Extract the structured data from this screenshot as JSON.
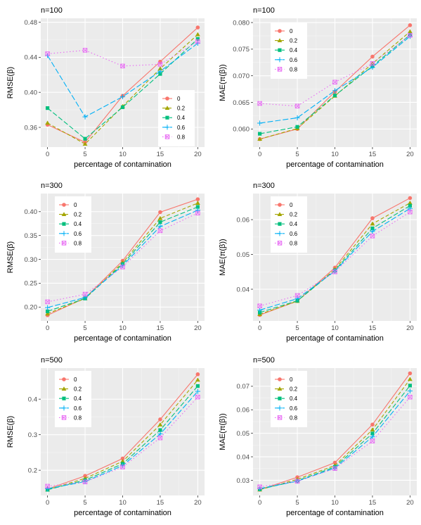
{
  "colors": {
    "panel_bg": "#EBEBEB",
    "grid_major": "#FFFFFF",
    "axis_text": "#4D4D4D",
    "legend_bg": "#FFFFFF",
    "series": [
      "#F8766D",
      "#A3A500",
      "#00BF7D",
      "#00B0F6",
      "#E76BF3"
    ]
  },
  "chart_data": [
    {
      "type": "line",
      "title": "n=100",
      "xlabel": "percentage of contamination",
      "ylabel": "RMSE(β)",
      "x": [
        0,
        5,
        10,
        15,
        20
      ],
      "xlim": [
        -0.9,
        20.9
      ],
      "ylim": [
        0.3375,
        0.4845
      ],
      "yticks": [
        0.36,
        0.4,
        0.44,
        0.48
      ],
      "ytick_labels": [
        "0.36",
        "0.40",
        "0.44",
        "0.48"
      ],
      "legend_position": "right-middle",
      "series": [
        {
          "name": "0",
          "values": [
            0.363,
            0.343,
            0.396,
            0.435,
            0.474
          ]
        },
        {
          "name": "0.2",
          "values": [
            0.365,
            0.341,
            0.384,
            0.427,
            0.466
          ]
        },
        {
          "name": "0.4",
          "values": [
            0.382,
            0.347,
            0.383,
            0.421,
            0.461
          ]
        },
        {
          "name": "0.6",
          "values": [
            0.442,
            0.372,
            0.395,
            0.424,
            0.456
          ]
        },
        {
          "name": "0.8",
          "values": [
            0.444,
            0.448,
            0.43,
            0.432,
            0.458
          ]
        }
      ]
    },
    {
      "type": "line",
      "title": "n=100",
      "xlabel": "percentage of contamination",
      "ylabel": "MAE(π(β))",
      "x": [
        0,
        5,
        10,
        15,
        20
      ],
      "xlim": [
        -0.9,
        20.9
      ],
      "ylim": [
        0.0566,
        0.0808
      ],
      "yticks": [
        0.06,
        0.065,
        0.07,
        0.075,
        0.08
      ],
      "ytick_labels": [
        "0.060",
        "0.065",
        "0.070",
        "0.075",
        "0.080"
      ],
      "legend_position": "top-left",
      "series": [
        {
          "name": "0",
          "values": [
            0.0581,
            0.06,
            0.067,
            0.0736,
            0.0795
          ]
        },
        {
          "name": "0.2",
          "values": [
            0.0581,
            0.0601,
            0.0662,
            0.0723,
            0.0783
          ]
        },
        {
          "name": "0.4",
          "values": [
            0.0591,
            0.0604,
            0.0663,
            0.0718,
            0.0777
          ]
        },
        {
          "name": "0.6",
          "values": [
            0.0611,
            0.0621,
            0.0672,
            0.0716,
            0.0774
          ]
        },
        {
          "name": "0.8",
          "values": [
            0.0648,
            0.0643,
            0.0688,
            0.0723,
            0.0776
          ]
        }
      ]
    },
    {
      "type": "line",
      "title": "n=300",
      "xlabel": "percentage of contamination",
      "ylabel": "RMSE(β)",
      "x": [
        0,
        5,
        10,
        15,
        20
      ],
      "xlim": [
        -0.9,
        20.9
      ],
      "ylim": [
        0.171,
        0.438
      ],
      "yticks": [
        0.2,
        0.25,
        0.3,
        0.35,
        0.4
      ],
      "ytick_labels": [
        "0.20",
        "0.25",
        "0.30",
        "0.35",
        "0.40"
      ],
      "legend_position": "top-left",
      "series": [
        {
          "name": "0",
          "values": [
            0.183,
            0.219,
            0.297,
            0.399,
            0.426
          ]
        },
        {
          "name": "0.2",
          "values": [
            0.186,
            0.218,
            0.293,
            0.386,
            0.418
          ]
        },
        {
          "name": "0.4",
          "values": [
            0.191,
            0.218,
            0.29,
            0.378,
            0.41
          ]
        },
        {
          "name": "0.6",
          "values": [
            0.199,
            0.22,
            0.287,
            0.369,
            0.403
          ]
        },
        {
          "name": "0.8",
          "values": [
            0.211,
            0.227,
            0.284,
            0.36,
            0.397
          ]
        }
      ]
    },
    {
      "type": "line",
      "title": "n=300",
      "xlabel": "percentage of contamination",
      "ylabel": "MAE(π(β))",
      "x": [
        0,
        5,
        10,
        15,
        20
      ],
      "xlim": [
        -0.9,
        20.9
      ],
      "ylim": [
        0.0309,
        0.0675
      ],
      "yticks": [
        0.04,
        0.05,
        0.06
      ],
      "ytick_labels": [
        "0.04",
        "0.05",
        "0.06"
      ],
      "legend_position": "top-left",
      "series": [
        {
          "name": "0",
          "values": [
            0.0326,
            0.0366,
            0.0462,
            0.0604,
            0.0662
          ]
        },
        {
          "name": "0.2",
          "values": [
            0.0328,
            0.0366,
            0.0457,
            0.0588,
            0.0648
          ]
        },
        {
          "name": "0.4",
          "values": [
            0.0333,
            0.0367,
            0.0454,
            0.0575,
            0.064
          ]
        },
        {
          "name": "0.6",
          "values": [
            0.034,
            0.0373,
            0.0452,
            0.0566,
            0.0632
          ]
        },
        {
          "name": "0.8",
          "values": [
            0.0352,
            0.0382,
            0.045,
            0.0553,
            0.0622
          ]
        }
      ]
    },
    {
      "type": "line",
      "title": "n=500",
      "xlabel": "percentage of contamination",
      "ylabel": "RMSE(β)",
      "x": [
        0,
        5,
        10,
        15,
        20
      ],
      "xlim": [
        -0.9,
        20.9
      ],
      "ylim": [
        0.129,
        0.4875
      ],
      "yticks": [
        0.2,
        0.3,
        0.4
      ],
      "ytick_labels": [
        "0.2",
        "0.3",
        "0.4"
      ],
      "legend_position": "top-left",
      "series": [
        {
          "name": "0",
          "values": [
            0.147,
            0.184,
            0.233,
            0.343,
            0.47
          ]
        },
        {
          "name": "0.2",
          "values": [
            0.145,
            0.177,
            0.225,
            0.328,
            0.454
          ]
        },
        {
          "name": "0.4",
          "values": [
            0.145,
            0.172,
            0.218,
            0.313,
            0.437
          ]
        },
        {
          "name": "0.6",
          "values": [
            0.148,
            0.168,
            0.213,
            0.302,
            0.422
          ]
        },
        {
          "name": "0.8",
          "values": [
            0.155,
            0.167,
            0.209,
            0.291,
            0.406
          ]
        }
      ]
    },
    {
      "type": "line",
      "title": "n=500",
      "xlabel": "percentage of contamination",
      "ylabel": "MAE(π(β))",
      "x": [
        0,
        5,
        10,
        15,
        20
      ],
      "xlim": [
        -0.9,
        20.9
      ],
      "ylim": [
        0.02355,
        0.07775
      ],
      "yticks": [
        0.03,
        0.04,
        0.05,
        0.06,
        0.07
      ],
      "ytick_labels": [
        "0.03",
        "0.04",
        "0.05",
        "0.06",
        "0.07"
      ],
      "legend_position": "top-left",
      "series": [
        {
          "name": "0",
          "values": [
            0.026,
            0.0313,
            0.0375,
            0.0537,
            0.0755
          ]
        },
        {
          "name": "0.2",
          "values": [
            0.026,
            0.0304,
            0.0363,
            0.0515,
            0.073
          ]
        },
        {
          "name": "0.4",
          "values": [
            0.0262,
            0.0298,
            0.0357,
            0.0499,
            0.0703
          ]
        },
        {
          "name": "0.6",
          "values": [
            0.0265,
            0.0296,
            0.0352,
            0.0485,
            0.068
          ]
        },
        {
          "name": "0.8",
          "values": [
            0.0272,
            0.0296,
            0.035,
            0.0467,
            0.0654
          ]
        }
      ]
    }
  ]
}
